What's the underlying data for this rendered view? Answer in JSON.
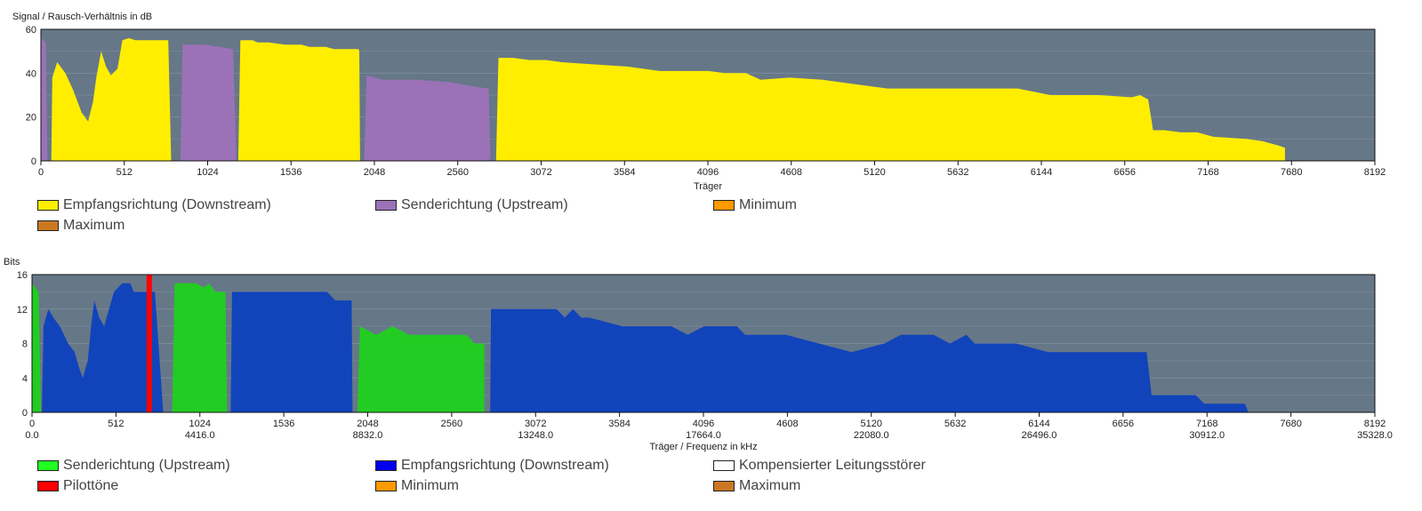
{
  "chart_data": [
    {
      "type": "area",
      "ylabel": "Signal / Rausch-Verhältnis in dB",
      "xlabel": "Träger",
      "xlim": [
        0,
        8192
      ],
      "ylim": [
        0,
        60
      ],
      "xticks": [
        0,
        512,
        1024,
        1536,
        2048,
        2560,
        3072,
        3584,
        4096,
        4608,
        5120,
        5632,
        6144,
        6656,
        7168,
        7680,
        8192
      ],
      "xtick_labels": [
        "0",
        "512",
        "1024",
        "1536",
        "2048",
        "2560",
        "3072",
        "3584",
        "4096",
        "4608",
        "5120",
        "5632",
        "6144",
        "6656",
        "7168",
        "7680",
        "8192"
      ],
      "yticks": [
        0,
        20,
        40,
        60
      ],
      "ytick_labels": [
        "0",
        "20",
        "40",
        "60"
      ],
      "grid": true,
      "series": [
        {
          "name": "Empfangsrichtung (Downstream)",
          "color": "#ffee00",
          "polygons": [
            [
              [
                64,
                0
              ],
              [
                70,
                38
              ],
              [
                100,
                45
              ],
              [
                150,
                40
              ],
              [
                200,
                32
              ],
              [
                250,
                22
              ],
              [
                290,
                18
              ],
              [
                320,
                27
              ],
              [
                340,
                38
              ],
              [
                370,
                50
              ],
              [
                400,
                43
              ],
              [
                430,
                39
              ],
              [
                470,
                42
              ],
              [
                500,
                55
              ],
              [
                540,
                56
              ],
              [
                580,
                55
              ],
              [
                640,
                55
              ],
              [
                700,
                55
              ],
              [
                782,
                55
              ],
              [
                800,
                0
              ]
            ],
            [
              [
                1212,
                0
              ],
              [
                1225,
                55
              ],
              [
                1300,
                55
              ],
              [
                1330,
                54
              ],
              [
                1400,
                54
              ],
              [
                1500,
                53
              ],
              [
                1600,
                53
              ],
              [
                1650,
                52
              ],
              [
                1750,
                52
              ],
              [
                1800,
                51
              ],
              [
                1950,
                51
              ],
              [
                1955,
                50
              ],
              [
                1960,
                0
              ]
            ],
            [
              [
                2795,
                0
              ],
              [
                2810,
                47
              ],
              [
                2900,
                47
              ],
              [
                3000,
                46
              ],
              [
                3100,
                46
              ],
              [
                3200,
                45
              ],
              [
                3400,
                44
              ],
              [
                3600,
                43
              ],
              [
                3800,
                41
              ],
              [
                4100,
                41
              ],
              [
                4200,
                40
              ],
              [
                4330,
                40
              ],
              [
                4420,
                37
              ],
              [
                4600,
                38
              ],
              [
                4800,
                37
              ],
              [
                5000,
                35
              ],
              [
                5200,
                33
              ],
              [
                5500,
                33
              ],
              [
                6000,
                33
              ],
              [
                6200,
                30
              ],
              [
                6500,
                30
              ],
              [
                6700,
                29
              ],
              [
                6750,
                30
              ],
              [
                6800,
                28
              ],
              [
                6830,
                14
              ],
              [
                6900,
                14
              ],
              [
                7000,
                13
              ],
              [
                7100,
                13
              ],
              [
                7200,
                11
              ],
              [
                7400,
                10
              ],
              [
                7500,
                9
              ],
              [
                7550,
                8
              ],
              [
                7600,
                7
              ],
              [
                7640,
                6
              ],
              [
                7640,
                0
              ]
            ]
          ]
        },
        {
          "name": "Senderichtung (Upstream)",
          "color": "#9b72b8",
          "polygons": [
            [
              [
                0,
                0
              ],
              [
                2,
                56
              ],
              [
                30,
                54
              ],
              [
                40,
                0
              ]
            ],
            [
              [
                857,
                0
              ],
              [
                870,
                53
              ],
              [
                1000,
                53
              ],
              [
                1100,
                52
              ],
              [
                1180,
                51
              ],
              [
                1200,
                0
              ]
            ],
            [
              [
                1986,
                0
              ],
              [
                2000,
                39
              ],
              [
                2100,
                37
              ],
              [
                2300,
                37
              ],
              [
                2500,
                36
              ],
              [
                2650,
                34
              ],
              [
                2750,
                33
              ],
              [
                2760,
                0
              ]
            ]
          ]
        },
        {
          "name": "Minimum",
          "color": "#ff9900",
          "polygons": []
        },
        {
          "name": "Maximum",
          "color": "#cc7722",
          "polygons": []
        }
      ]
    },
    {
      "type": "area",
      "ylabel": "Bits",
      "xlabel": "Träger / Frequenz in kHz",
      "xlim": [
        0,
        8192
      ],
      "ylim": [
        0,
        16
      ],
      "xticks": [
        0,
        512,
        1024,
        1536,
        2048,
        2560,
        3072,
        3584,
        4096,
        4608,
        5120,
        5632,
        6144,
        6656,
        7168,
        7680,
        8192
      ],
      "xtick_labels": [
        "0",
        "512",
        "1024",
        "1536",
        "2048",
        "2560",
        "3072",
        "3584",
        "4096",
        "4608",
        "5120",
        "5632",
        "6144",
        "6656",
        "7168",
        "7680",
        "8192"
      ],
      "xtick_freq_labels": [
        "0.0",
        "4416.0",
        "8832.0",
        "13248.0",
        "17664.0",
        "22080.0",
        "26496.0",
        "30912.0",
        "35328.0"
      ],
      "yticks": [
        0,
        4,
        8,
        12,
        16
      ],
      "ytick_labels": [
        "0",
        "4",
        "8",
        "12",
        "16"
      ],
      "grid": true,
      "series": [
        {
          "name": "Senderichtung (Upstream)",
          "color": "#22cc22",
          "polygons": [
            [
              [
                0,
                0
              ],
              [
                0,
                15
              ],
              [
                40,
                14
              ],
              [
                55,
                0
              ]
            ],
            [
              [
                855,
                0
              ],
              [
                870,
                15
              ],
              [
                1000,
                15
              ],
              [
                1050,
                14.5
              ],
              [
                1080,
                15
              ],
              [
                1120,
                14
              ],
              [
                1180,
                14
              ],
              [
                1190,
                0
              ]
            ],
            [
              [
                1985,
                0
              ],
              [
                2000,
                10
              ],
              [
                2100,
                9
              ],
              [
                2200,
                10
              ],
              [
                2300,
                9
              ],
              [
                2400,
                9
              ],
              [
                2450,
                9
              ],
              [
                2500,
                9
              ],
              [
                2550,
                9
              ],
              [
                2650,
                9
              ],
              [
                2700,
                8
              ],
              [
                2760,
                8
              ],
              [
                2760,
                0
              ]
            ]
          ]
        },
        {
          "name": "Empfangsrichtung (Downstream)",
          "color": "#1144bb",
          "polygons": [
            [
              [
                60,
                0
              ],
              [
                70,
                10
              ],
              [
                100,
                12
              ],
              [
                130,
                11
              ],
              [
                170,
                10
              ],
              [
                220,
                8
              ],
              [
                260,
                7
              ],
              [
                290,
                5
              ],
              [
                310,
                4
              ],
              [
                340,
                6
              ],
              [
                360,
                10
              ],
              [
                380,
                13
              ],
              [
                410,
                11
              ],
              [
                440,
                10
              ],
              [
                470,
                12
              ],
              [
                500,
                14
              ],
              [
                550,
                15
              ],
              [
                600,
                15
              ],
              [
                620,
                14
              ],
              [
                700,
                14
              ],
              [
                750,
                14
              ],
              [
                800,
                0
              ]
            ],
            [
              [
                1212,
                0
              ],
              [
                1220,
                14
              ],
              [
                1400,
                14
              ],
              [
                1600,
                14
              ],
              [
                1800,
                14
              ],
              [
                1850,
                13
              ],
              [
                1950,
                13
              ],
              [
                1955,
                0
              ]
            ],
            [
              [
                2795,
                0
              ],
              [
                2800,
                12
              ],
              [
                2900,
                12
              ],
              [
                3000,
                12
              ],
              [
                3200,
                12
              ],
              [
                3250,
                11
              ],
              [
                3300,
                12
              ],
              [
                3350,
                11
              ],
              [
                3400,
                11
              ],
              [
                3600,
                10
              ],
              [
                3800,
                10
              ],
              [
                3900,
                10
              ],
              [
                4000,
                9
              ],
              [
                4100,
                10
              ],
              [
                4300,
                10
              ],
              [
                4350,
                9
              ],
              [
                4600,
                9
              ],
              [
                4800,
                8
              ],
              [
                5000,
                7
              ],
              [
                5200,
                8
              ],
              [
                5300,
                9
              ],
              [
                5500,
                9
              ],
              [
                5600,
                8
              ],
              [
                5700,
                9
              ],
              [
                5750,
                8
              ],
              [
                5800,
                8
              ],
              [
                6000,
                8
              ],
              [
                6200,
                7
              ],
              [
                6500,
                7
              ],
              [
                6800,
                7
              ],
              [
                6830,
                2
              ],
              [
                6900,
                2
              ],
              [
                7100,
                2
              ],
              [
                7150,
                1
              ],
              [
                7300,
                1
              ],
              [
                7400,
                1
              ],
              [
                7420,
                0
              ]
            ]
          ]
        },
        {
          "name": "Kompensierter Leitungsstörer",
          "color": "#ffffff",
          "polygons": []
        },
        {
          "name": "Pilottöne",
          "color": "#ff0000",
          "bars": [
            [
              715,
              16
            ]
          ]
        },
        {
          "name": "Minimum",
          "color": "#ff9900",
          "polygons": []
        },
        {
          "name": "Maximum",
          "color": "#cc7722",
          "polygons": []
        }
      ]
    }
  ],
  "legend1": [
    {
      "label": "Empfangsrichtung (Downstream)",
      "color": "#ffee00"
    },
    {
      "label": "Senderichtung (Upstream)",
      "color": "#9b72b8"
    },
    {
      "label": "Minimum",
      "color": "#ff9900"
    },
    {
      "label": "Maximum",
      "color": "#cc7722"
    }
  ],
  "legend2": [
    {
      "label": "Senderichtung (Upstream)",
      "color": "#22ff22"
    },
    {
      "label": "Empfangsrichtung (Downstream)",
      "color": "#0000ee"
    },
    {
      "label": "Kompensierter Leitungsstörer",
      "color": "#ffffff"
    },
    {
      "label": "Pilottöne",
      "color": "#ff0000"
    },
    {
      "label": "Minimum",
      "color": "#ff9900"
    },
    {
      "label": "Maximum",
      "color": "#cc7722"
    }
  ],
  "plot_bg": "#667788",
  "grid_color": "#7a8b9a"
}
